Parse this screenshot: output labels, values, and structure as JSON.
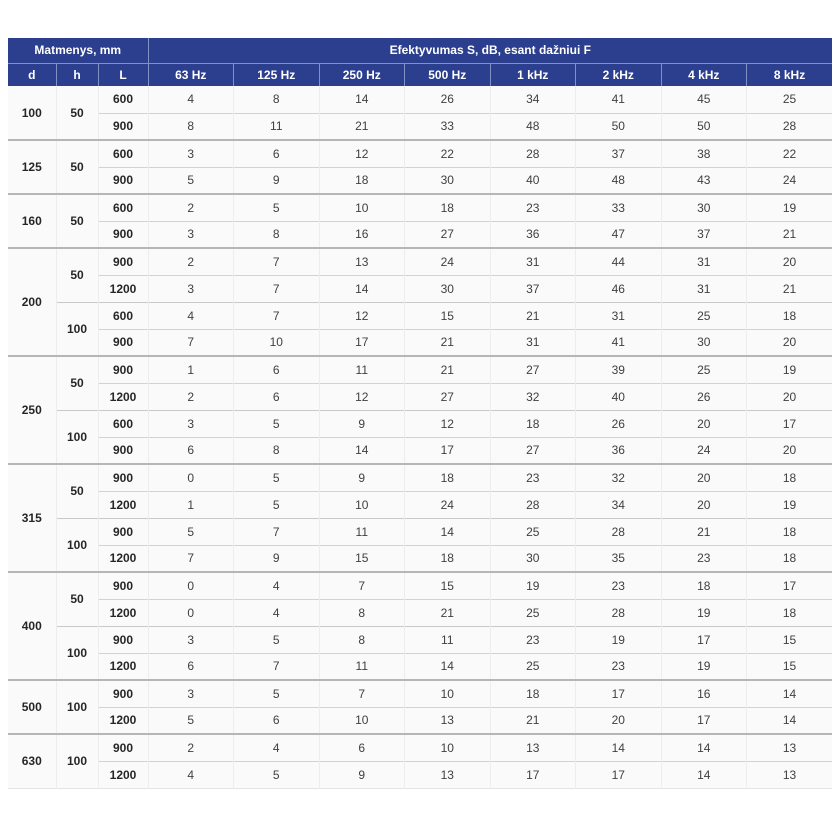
{
  "table": {
    "header": {
      "dims_label": "Matmenys, mm",
      "eff_label": "Efektyvumas S, dB, esant dažniui F",
      "dim_cols": [
        "d",
        "h",
        "L"
      ],
      "freq_cols": [
        "63 Hz",
        "125 Hz",
        "250 Hz",
        "500 Hz",
        "1 kHz",
        "2 kHz",
        "4 kHz",
        "8 kHz"
      ]
    },
    "groups": [
      {
        "d": "100",
        "subgroups": [
          {
            "h": "50",
            "rows": [
              {
                "L": "600",
                "values": [
                  4,
                  8,
                  14,
                  26,
                  34,
                  41,
                  45,
                  25
                ]
              },
              {
                "L": "900",
                "values": [
                  8,
                  11,
                  21,
                  33,
                  48,
                  50,
                  50,
                  28
                ]
              }
            ]
          }
        ]
      },
      {
        "d": "125",
        "subgroups": [
          {
            "h": "50",
            "rows": [
              {
                "L": "600",
                "values": [
                  3,
                  6,
                  12,
                  22,
                  28,
                  37,
                  38,
                  22
                ]
              },
              {
                "L": "900",
                "values": [
                  5,
                  9,
                  18,
                  30,
                  40,
                  48,
                  43,
                  24
                ]
              }
            ]
          }
        ]
      },
      {
        "d": "160",
        "subgroups": [
          {
            "h": "50",
            "rows": [
              {
                "L": "600",
                "values": [
                  2,
                  5,
                  10,
                  18,
                  23,
                  33,
                  30,
                  19
                ]
              },
              {
                "L": "900",
                "values": [
                  3,
                  8,
                  16,
                  27,
                  36,
                  47,
                  37,
                  21
                ]
              }
            ]
          }
        ]
      },
      {
        "d": "200",
        "subgroups": [
          {
            "h": "50",
            "rows": [
              {
                "L": "900",
                "values": [
                  2,
                  7,
                  13,
                  24,
                  31,
                  44,
                  31,
                  20
                ]
              },
              {
                "L": "1200",
                "values": [
                  3,
                  7,
                  14,
                  30,
                  37,
                  46,
                  31,
                  21
                ]
              }
            ]
          },
          {
            "h": "100",
            "rows": [
              {
                "L": "600",
                "values": [
                  4,
                  7,
                  12,
                  15,
                  21,
                  31,
                  25,
                  18
                ]
              },
              {
                "L": "900",
                "values": [
                  7,
                  10,
                  17,
                  21,
                  31,
                  41,
                  30,
                  20
                ]
              }
            ]
          }
        ]
      },
      {
        "d": "250",
        "subgroups": [
          {
            "h": "50",
            "rows": [
              {
                "L": "900",
                "values": [
                  1,
                  6,
                  11,
                  21,
                  27,
                  39,
                  25,
                  19
                ]
              },
              {
                "L": "1200",
                "values": [
                  2,
                  6,
                  12,
                  27,
                  32,
                  40,
                  26,
                  20
                ]
              }
            ]
          },
          {
            "h": "100",
            "rows": [
              {
                "L": "600",
                "values": [
                  3,
                  5,
                  9,
                  12,
                  18,
                  26,
                  20,
                  17
                ]
              },
              {
                "L": "900",
                "values": [
                  6,
                  8,
                  14,
                  17,
                  27,
                  36,
                  24,
                  20
                ]
              }
            ]
          }
        ]
      },
      {
        "d": "315",
        "subgroups": [
          {
            "h": "50",
            "rows": [
              {
                "L": "900",
                "values": [
                  0,
                  5,
                  9,
                  18,
                  23,
                  32,
                  20,
                  18
                ]
              },
              {
                "L": "1200",
                "values": [
                  1,
                  5,
                  10,
                  24,
                  28,
                  34,
                  20,
                  19
                ]
              }
            ]
          },
          {
            "h": "100",
            "rows": [
              {
                "L": "900",
                "values": [
                  5,
                  7,
                  11,
                  14,
                  25,
                  28,
                  21,
                  18
                ]
              },
              {
                "L": "1200",
                "values": [
                  7,
                  9,
                  15,
                  18,
                  30,
                  35,
                  23,
                  18
                ]
              }
            ]
          }
        ]
      },
      {
        "d": "400",
        "subgroups": [
          {
            "h": "50",
            "rows": [
              {
                "L": "900",
                "values": [
                  0,
                  4,
                  7,
                  15,
                  19,
                  23,
                  18,
                  17
                ]
              },
              {
                "L": "1200",
                "values": [
                  0,
                  4,
                  8,
                  21,
                  25,
                  28,
                  19,
                  18
                ]
              }
            ]
          },
          {
            "h": "100",
            "rows": [
              {
                "L": "900",
                "values": [
                  3,
                  5,
                  8,
                  11,
                  23,
                  19,
                  17,
                  15
                ]
              },
              {
                "L": "1200",
                "values": [
                  6,
                  7,
                  11,
                  14,
                  25,
                  23,
                  19,
                  15
                ]
              }
            ]
          }
        ]
      },
      {
        "d": "500",
        "subgroups": [
          {
            "h": "100",
            "rows": [
              {
                "L": "900",
                "values": [
                  3,
                  5,
                  7,
                  10,
                  18,
                  17,
                  16,
                  14
                ]
              },
              {
                "L": "1200",
                "values": [
                  5,
                  6,
                  10,
                  13,
                  21,
                  20,
                  17,
                  14
                ]
              }
            ]
          }
        ]
      },
      {
        "d": "630",
        "subgroups": [
          {
            "h": "100",
            "rows": [
              {
                "L": "900",
                "values": [
                  2,
                  4,
                  6,
                  10,
                  13,
                  14,
                  14,
                  13
                ]
              },
              {
                "L": "1200",
                "values": [
                  4,
                  5,
                  9,
                  13,
                  17,
                  17,
                  14,
                  13
                ]
              }
            ]
          }
        ]
      }
    ]
  },
  "colors": {
    "header_bg": "#2b3f8e",
    "header_text": "#ffffff",
    "header_separator": "#8191c4",
    "row_bg": "#fafafa",
    "group_divider": "#b6b6b6",
    "row_divider": "#d2d2d2",
    "value_text": "#404040",
    "dim_text": "#262626"
  }
}
